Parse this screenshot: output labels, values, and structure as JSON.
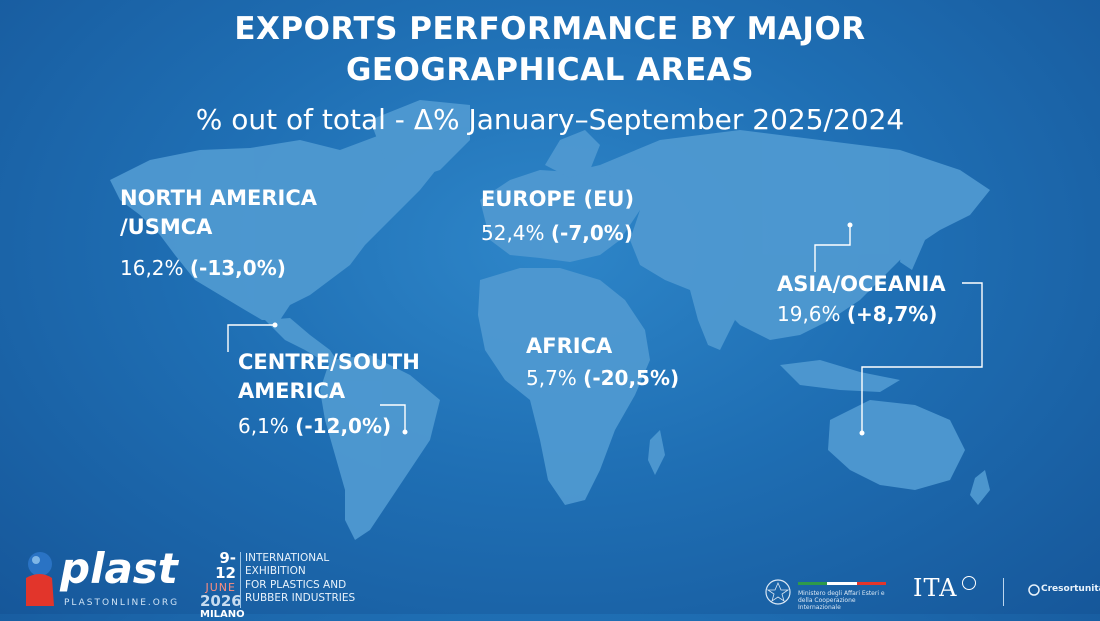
{
  "title_line1": "EXPORTS PERFORMANCE BY MAJOR",
  "title_line2": "GEOGRAPHICAL AREAS",
  "subtitle": "% out of total - Δ% January–September 2025/2024",
  "regions": {
    "north_america": {
      "name_line1": "NORTH AMERICA",
      "name_line2": "/USMCA",
      "share": "16,2%",
      "delta": "(-13,0%)"
    },
    "centre_south_america": {
      "name_line1": "CENTRE/SOUTH",
      "name_line2": "AMERICA",
      "share": "6,1%",
      "delta": "(-12,0%)"
    },
    "europe": {
      "name": "EUROPE (EU)",
      "share": "52,4%",
      "delta": "(-7,0%)"
    },
    "africa": {
      "name": "AFRICA",
      "share": "5,7%",
      "delta": "(-20,5%)"
    },
    "asia_oceania": {
      "name": "ASIA/OCEANIA",
      "share": "19,6%",
      "delta": "(+8,7%)"
    }
  },
  "footer": {
    "plast_logo": "plast",
    "plast_url": "PLASTONLINE.ORG",
    "date_days": "9-12",
    "date_month": "JUNE",
    "date_year": "2026",
    "date_city": "MILANO",
    "exhibition_lines": [
      "INTERNATIONAL",
      "EXHIBITION",
      "FOR PLASTICS AND",
      "RUBBER INDUSTRIES"
    ],
    "ministry_text": "Ministero degli Affari Esteri e della Cooperazione Internazionale",
    "ita_logo": "ITA",
    "cres_logo": "Cresortunita"
  },
  "colors": {
    "background": "#1f6fb4",
    "land": "#4d97cf",
    "accent_red": "#e2352b"
  }
}
